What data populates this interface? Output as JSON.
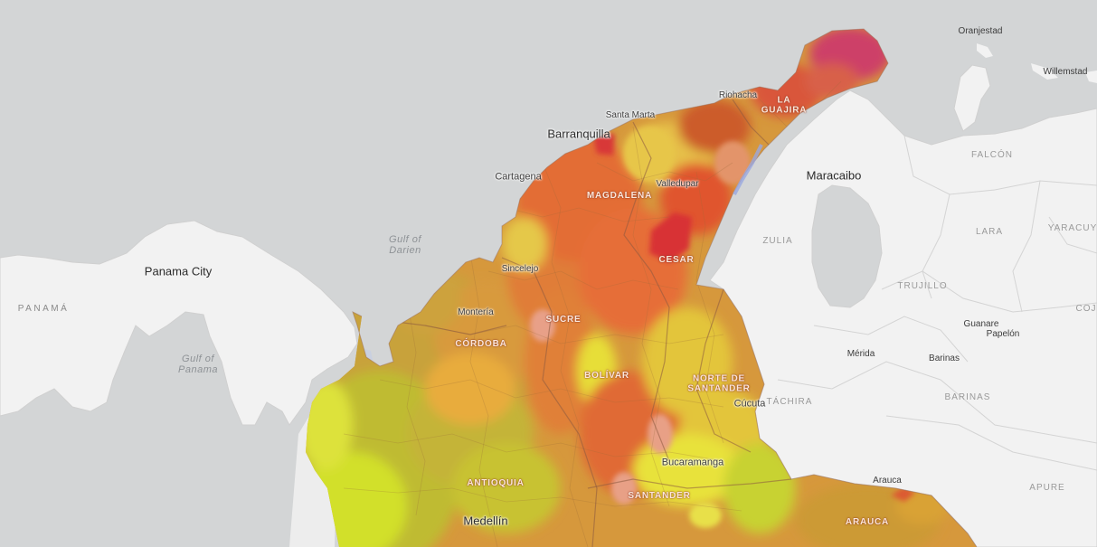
{
  "map": {
    "colors": {
      "ocean": "#d3d5d6",
      "land": "#f2f2f2",
      "land_border": "#d0d0d0",
      "lake": "#b8c4d4",
      "choropleth_low": "#d4e02a",
      "choropleth_mid": "#e8a43a",
      "choropleth_high": "#d8343c",
      "choropleth_max": "#cc3c6c"
    },
    "cities": [
      {
        "id": "barranquilla",
        "name": "Barranquilla",
        "major": true
      },
      {
        "id": "santa-marta",
        "name": "Santa Marta",
        "major": false
      },
      {
        "id": "riohacha",
        "name": "Riohacha",
        "major": false
      },
      {
        "id": "cartagena",
        "name": "Cartagena",
        "major": false
      },
      {
        "id": "valledupar",
        "name": "Valledupar",
        "major": false
      },
      {
        "id": "sincelejo",
        "name": "Sincelejo",
        "major": false
      },
      {
        "id": "monteria",
        "name": "Montería",
        "major": false
      },
      {
        "id": "cucuta",
        "name": "Cúcuta",
        "major": false
      },
      {
        "id": "bucaramanga",
        "name": "Bucaramanga",
        "major": false
      },
      {
        "id": "medellin",
        "name": "Medellín",
        "major": true
      },
      {
        "id": "panama-city",
        "name": "Panama City",
        "major": true
      },
      {
        "id": "maracaibo",
        "name": "Maracaibo",
        "major": true
      },
      {
        "id": "oranjestad",
        "name": "Oranjestad",
        "major": false
      },
      {
        "id": "willemstad",
        "name": "Willemstad",
        "major": false
      },
      {
        "id": "merida",
        "name": "Mérida",
        "major": false
      },
      {
        "id": "barinas",
        "name": "Barinas",
        "major": false
      },
      {
        "id": "guanare",
        "name": "Guanare",
        "major": false
      },
      {
        "id": "papelon",
        "name": "Papelón",
        "major": false
      },
      {
        "id": "arauca",
        "name": "Arauca",
        "major": false
      }
    ],
    "countries": [
      {
        "id": "panama",
        "name": "PANAMÁ"
      }
    ],
    "regions": [
      {
        "id": "falcon",
        "name": "FALCÓN"
      },
      {
        "id": "zulia",
        "name": "ZULIA"
      },
      {
        "id": "lara",
        "name": "LARA"
      },
      {
        "id": "yaracuy",
        "name": "YARACUY"
      },
      {
        "id": "trujillo",
        "name": "TRUJILLO"
      },
      {
        "id": "tachira",
        "name": "TÁCHIRA"
      },
      {
        "id": "barinas-state",
        "name": "BARINAS"
      },
      {
        "id": "apure",
        "name": "APURE"
      },
      {
        "id": "cojedes",
        "name": "COJ"
      }
    ],
    "departments": [
      {
        "id": "la-guajira",
        "name": "LA\nGUAJIRA"
      },
      {
        "id": "magdalena",
        "name": "MAGDALENA"
      },
      {
        "id": "cesar",
        "name": "CESAR"
      },
      {
        "id": "sucre",
        "name": "SUCRE"
      },
      {
        "id": "cordoba",
        "name": "CÓRDOBA"
      },
      {
        "id": "bolivar",
        "name": "BOLÍVAR"
      },
      {
        "id": "norte-de-santander",
        "name": "NORTE DE\nSANTANDER"
      },
      {
        "id": "antioquia",
        "name": "ANTIOQUIA"
      },
      {
        "id": "santander",
        "name": "SANTANDER"
      },
      {
        "id": "arauca-dept",
        "name": "ARAUCA"
      }
    ],
    "water_bodies": [
      {
        "id": "gulf-of-darien",
        "name": "Gulf of\nDarien"
      },
      {
        "id": "gulf-of-panama",
        "name": "Gulf of\nPanama"
      }
    ]
  }
}
